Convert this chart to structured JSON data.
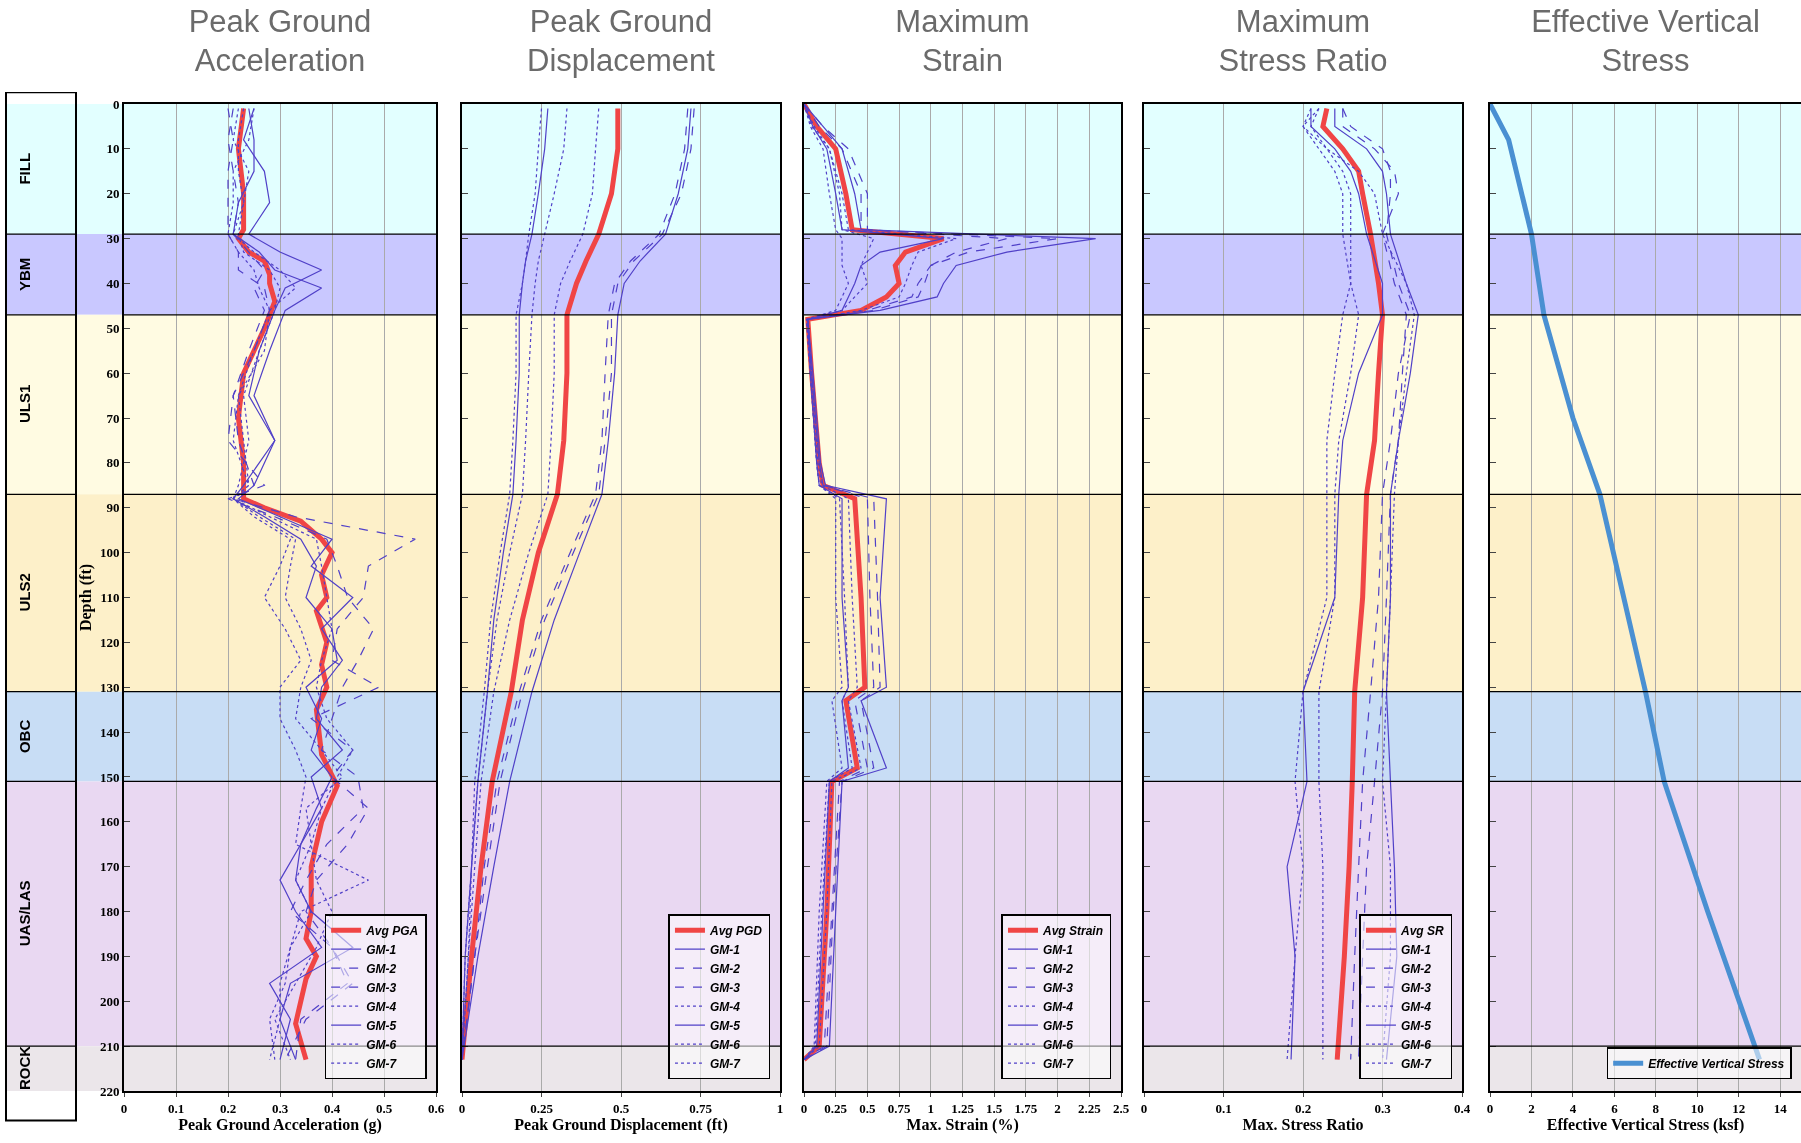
{
  "chart_data": [
    {
      "type": "line",
      "title": "Peak Ground\nAcceleration",
      "xlabel": "Peak Ground Acceleration (g)",
      "ylabel": "Depth (ft)",
      "xlim": [
        0,
        0.6
      ],
      "xticks": [
        0,
        0.1,
        0.2,
        0.3,
        0.4,
        0.5,
        0.6
      ],
      "ylim": [
        220,
        0
      ],
      "yticks": [
        0,
        10,
        20,
        30,
        40,
        50,
        60,
        70,
        80,
        90,
        100,
        110,
        120,
        130,
        140,
        150,
        160,
        170,
        180,
        190,
        200,
        210,
        220
      ],
      "grid": "x",
      "legend": "bottom right",
      "bands": [
        {
          "axis": "y",
          "from": 0,
          "to": 29,
          "label": "FILL",
          "color": "#e2ffff"
        },
        {
          "axis": "y",
          "from": 29,
          "to": 47,
          "label": "YBM",
          "color": "#c9c8ff"
        },
        {
          "axis": "y",
          "from": 47,
          "to": 87,
          "label": "ULS1",
          "color": "#fffbe2"
        },
        {
          "axis": "y",
          "from": 87,
          "to": 131,
          "label": "ULS2",
          "color": "#fdf0c9"
        },
        {
          "axis": "y",
          "from": 131,
          "to": 151,
          "label": "OBC",
          "color": "#c8ddf5"
        },
        {
          "axis": "y",
          "from": 151,
          "to": 210,
          "label": "UAS/LAS",
          "color": "#e9d8f2"
        },
        {
          "axis": "y",
          "from": 210,
          "to": 220,
          "label": "ROCK",
          "color": "#ebe6ea"
        }
      ],
      "series": [
        {
          "name": "Avg PGA",
          "color": "#f04545",
          "line_style": "solid",
          "x": [
            0.23,
            0.22,
            0.23,
            0.23,
            0.22,
            0.24,
            0.27,
            0.28,
            0.28,
            0.29,
            0.27,
            0.23,
            0.22,
            0.23,
            0.23,
            0.27,
            0.34,
            0.38,
            0.4,
            0.38,
            0.39,
            0.37,
            0.39,
            0.38,
            0.39,
            0.37,
            0.38,
            0.41,
            0.38,
            0.36,
            0.36,
            0.35,
            0.37,
            0.35,
            0.33,
            0.35
          ],
          "values": [
            1,
            10,
            20,
            28,
            30,
            33,
            35,
            38,
            40,
            44,
            50,
            60,
            70,
            80,
            88,
            90,
            93,
            97,
            100,
            105,
            110,
            113,
            120,
            125,
            130,
            135,
            145,
            152,
            160,
            170,
            180,
            186,
            190,
            195,
            205,
            213
          ]
        },
        {
          "name": "GM-1",
          "color": "#5040c8",
          "line_style": "solid",
          "x": [
            0.25,
            0.23,
            0.27,
            0.28,
            0.24,
            0.3,
            0.38,
            0.31,
            0.29,
            0.26,
            0.24,
            0.29,
            0.25,
            0.22,
            0.3,
            0.4,
            0.36,
            0.44,
            0.38,
            0.42,
            0.38,
            0.37,
            0.42,
            0.36,
            0.38,
            0.34,
            0.33,
            0.36,
            0.44,
            0.32,
            0.3,
            0.33
          ],
          "values": [
            1,
            8,
            15,
            22,
            29,
            33,
            37,
            41,
            46,
            55,
            65,
            75,
            85,
            88,
            92,
            97,
            103,
            110,
            117,
            124,
            130,
            137,
            144,
            150,
            157,
            165,
            173,
            180,
            188,
            196,
            204,
            213
          ]
        },
        {
          "name": "GM-2",
          "color": "#5040c8",
          "line_style": "dashed",
          "x": [
            0.21,
            0.2,
            0.21,
            0.22,
            0.21,
            0.24,
            0.27,
            0.25,
            0.27,
            0.24,
            0.21,
            0.22,
            0.25,
            0.21,
            0.33,
            0.56,
            0.47,
            0.46,
            0.41,
            0.4,
            0.49,
            0.36,
            0.44,
            0.4,
            0.47,
            0.43,
            0.37,
            0.35,
            0.4,
            0.43,
            0.34,
            0.33
          ],
          "values": [
            1,
            8,
            15,
            22,
            29,
            33,
            37,
            41,
            46,
            55,
            65,
            75,
            85,
            88,
            92,
            97,
            103,
            110,
            117,
            124,
            130,
            137,
            144,
            150,
            157,
            165,
            173,
            180,
            188,
            196,
            204,
            213
          ]
        },
        {
          "name": "GM-3",
          "color": "#5040c8",
          "line_style": "dashed",
          "x": [
            0.2,
            0.21,
            0.2,
            0.2,
            0.2,
            0.22,
            0.22,
            0.27,
            0.28,
            0.25,
            0.21,
            0.2,
            0.27,
            0.2,
            0.29,
            0.39,
            0.41,
            0.43,
            0.48,
            0.45,
            0.42,
            0.4,
            0.38,
            0.45,
            0.46,
            0.39,
            0.35,
            0.32,
            0.4,
            0.44,
            0.35,
            0.31
          ],
          "values": [
            1,
            8,
            15,
            22,
            29,
            33,
            37,
            41,
            46,
            55,
            65,
            75,
            85,
            88,
            92,
            97,
            103,
            110,
            117,
            124,
            130,
            137,
            144,
            150,
            157,
            165,
            173,
            180,
            188,
            196,
            204,
            213
          ]
        },
        {
          "name": "GM-4",
          "color": "#5040c8",
          "line_style": "dotted",
          "x": [
            0.22,
            0.21,
            0.24,
            0.23,
            0.21,
            0.25,
            0.3,
            0.33,
            0.28,
            0.27,
            0.22,
            0.23,
            0.24,
            0.21,
            0.28,
            0.37,
            0.38,
            0.39,
            0.4,
            0.38,
            0.37,
            0.39,
            0.44,
            0.41,
            0.38,
            0.36,
            0.37,
            0.4,
            0.37,
            0.33,
            0.29,
            0.32
          ],
          "values": [
            1,
            8,
            15,
            22,
            29,
            33,
            37,
            41,
            46,
            55,
            65,
            75,
            85,
            88,
            92,
            97,
            103,
            110,
            117,
            124,
            130,
            137,
            144,
            150,
            157,
            165,
            173,
            180,
            188,
            196,
            204,
            213
          ]
        },
        {
          "name": "GM-5",
          "color": "#5040c8",
          "line_style": "solid",
          "x": [
            0.24,
            0.25,
            0.25,
            0.22,
            0.21,
            0.26,
            0.29,
            0.38,
            0.31,
            0.28,
            0.25,
            0.29,
            0.23,
            0.21,
            0.27,
            0.34,
            0.37,
            0.35,
            0.4,
            0.41,
            0.35,
            0.38,
            0.36,
            0.4,
            0.37,
            0.34,
            0.3,
            0.33,
            0.38,
            0.28,
            0.32,
            0.3
          ],
          "values": [
            1,
            8,
            15,
            22,
            29,
            33,
            37,
            41,
            46,
            55,
            65,
            75,
            85,
            88,
            92,
            97,
            103,
            110,
            117,
            124,
            130,
            137,
            144,
            150,
            157,
            165,
            173,
            180,
            188,
            196,
            204,
            213
          ]
        },
        {
          "name": "GM-6",
          "color": "#5040c8",
          "line_style": "dotted",
          "x": [
            0.23,
            0.22,
            0.22,
            0.23,
            0.22,
            0.23,
            0.28,
            0.3,
            0.29,
            0.26,
            0.23,
            0.24,
            0.22,
            0.21,
            0.26,
            0.33,
            0.32,
            0.31,
            0.34,
            0.36,
            0.34,
            0.33,
            0.38,
            0.42,
            0.35,
            0.36,
            0.33,
            0.36,
            0.32,
            0.31,
            0.28,
            0.29
          ],
          "values": [
            1,
            8,
            15,
            22,
            29,
            33,
            37,
            41,
            46,
            55,
            65,
            75,
            85,
            88,
            92,
            97,
            103,
            110,
            117,
            124,
            130,
            137,
            144,
            150,
            157,
            165,
            173,
            180,
            188,
            196,
            204,
            213
          ]
        },
        {
          "name": "GM-7",
          "color": "#5040c8",
          "line_style": "dotted",
          "x": [
            0.25,
            0.24,
            0.21,
            0.21,
            0.2,
            0.22,
            0.25,
            0.26,
            0.28,
            0.25,
            0.22,
            0.21,
            0.24,
            0.21,
            0.25,
            0.32,
            0.3,
            0.27,
            0.31,
            0.34,
            0.3,
            0.3,
            0.33,
            0.35,
            0.34,
            0.33,
            0.47,
            0.34,
            0.32,
            0.3,
            0.3,
            0.28
          ],
          "values": [
            1,
            8,
            15,
            22,
            29,
            33,
            37,
            41,
            46,
            55,
            65,
            75,
            85,
            88,
            92,
            97,
            103,
            110,
            117,
            124,
            130,
            137,
            144,
            150,
            157,
            165,
            173,
            180,
            188,
            196,
            204,
            213
          ]
        }
      ]
    },
    {
      "type": "line",
      "title": "Peak Ground\nDisplacement",
      "xlabel": "Peak Ground Displacement (ft)",
      "xlim": [
        0,
        1
      ],
      "xticks": [
        0,
        0.25,
        0.5,
        0.75,
        1
      ],
      "ylim": [
        220,
        0
      ],
      "yticks": [
        0,
        10,
        20,
        30,
        40,
        50,
        60,
        70,
        80,
        90,
        100,
        110,
        120,
        130,
        140,
        150,
        160,
        170,
        180,
        190,
        200,
        210,
        220
      ],
      "grid": "x",
      "legend": "bottom right",
      "tick_labels": "x",
      "bands": [
        {
          "axis": "y",
          "from": 0,
          "to": 29,
          "color": "#e2ffff"
        },
        {
          "axis": "y",
          "from": 29,
          "to": 47,
          "color": "#c9c8ff"
        },
        {
          "axis": "y",
          "from": 47,
          "to": 87,
          "color": "#fffbe2"
        },
        {
          "axis": "y",
          "from": 87,
          "to": 131,
          "color": "#fdf0c9"
        },
        {
          "axis": "y",
          "from": 131,
          "to": 151,
          "color": "#c8ddf5"
        },
        {
          "axis": "y",
          "from": 151,
          "to": 210,
          "color": "#e9d8f2"
        },
        {
          "axis": "y",
          "from": 210,
          "to": 220,
          "color": "#ebe6ea"
        }
      ],
      "series": [
        {
          "name": "Avg PGD",
          "color": "#f04545",
          "line_style": "solid",
          "x": [
            0.49,
            0.49,
            0.47,
            0.43,
            0.39,
            0.36,
            0.33,
            0.33,
            0.32,
            0.3,
            0.24,
            0.19,
            0.155,
            0.095,
            0.06,
            0.03,
            0
          ],
          "values": [
            1,
            10,
            20,
            29,
            35,
            40,
            47,
            60,
            75,
            87,
            100,
            115,
            131,
            151,
            170,
            190,
            213
          ]
        },
        {
          "name": "GM-1",
          "color": "#5040c8",
          "line_style": "solid",
          "x": [
            0.72,
            0.71,
            0.68,
            0.64,
            0.56,
            0.51,
            0.49,
            0.48,
            0.46,
            0.44,
            0.37,
            0.29,
            0.22,
            0.15,
            0.1,
            0.05,
            0
          ],
          "values": [
            1,
            10,
            20,
            29,
            35,
            40,
            47,
            60,
            75,
            87,
            100,
            115,
            131,
            151,
            170,
            190,
            213
          ]
        },
        {
          "name": "GM-2",
          "color": "#5040c8",
          "line_style": "dashed",
          "x": [
            0.73,
            0.72,
            0.69,
            0.63,
            0.54,
            0.49,
            0.47,
            0.47,
            0.45,
            0.43,
            0.35,
            0.26,
            0.19,
            0.12,
            0.08,
            0.04,
            0
          ],
          "values": [
            1,
            10,
            20,
            29,
            35,
            40,
            47,
            60,
            75,
            87,
            100,
            115,
            131,
            151,
            170,
            190,
            213
          ]
        },
        {
          "name": "GM-3",
          "color": "#5040c8",
          "line_style": "dashed",
          "x": [
            0.71,
            0.7,
            0.67,
            0.62,
            0.53,
            0.48,
            0.46,
            0.45,
            0.44,
            0.42,
            0.34,
            0.25,
            0.18,
            0.11,
            0.07,
            0.04,
            0
          ],
          "values": [
            1,
            10,
            20,
            29,
            35,
            40,
            47,
            60,
            75,
            87,
            100,
            115,
            131,
            151,
            170,
            190,
            213
          ]
        },
        {
          "name": "GM-4",
          "color": "#5040c8",
          "line_style": "dotted",
          "x": [
            0.43,
            0.42,
            0.41,
            0.38,
            0.34,
            0.31,
            0.29,
            0.29,
            0.28,
            0.27,
            0.21,
            0.15,
            0.1,
            0.06,
            0.04,
            0.02,
            0
          ],
          "values": [
            1,
            10,
            20,
            29,
            35,
            40,
            47,
            60,
            75,
            87,
            100,
            115,
            131,
            151,
            170,
            190,
            213
          ]
        },
        {
          "name": "GM-5",
          "color": "#5040c8",
          "line_style": "solid",
          "x": [
            0.27,
            0.26,
            0.24,
            0.22,
            0.2,
            0.19,
            0.18,
            0.18,
            0.17,
            0.16,
            0.13,
            0.1,
            0.08,
            0.05,
            0.03,
            0.01,
            0
          ],
          "values": [
            1,
            10,
            20,
            29,
            35,
            40,
            47,
            60,
            75,
            87,
            100,
            115,
            131,
            151,
            170,
            190,
            213
          ]
        },
        {
          "name": "GM-6",
          "color": "#5040c8",
          "line_style": "dotted",
          "x": [
            0.25,
            0.24,
            0.23,
            0.21,
            0.2,
            0.19,
            0.17,
            0.17,
            0.16,
            0.15,
            0.12,
            0.09,
            0.07,
            0.04,
            0.03,
            0.01,
            0
          ],
          "values": [
            1,
            10,
            20,
            29,
            35,
            40,
            47,
            60,
            75,
            87,
            100,
            115,
            131,
            151,
            170,
            190,
            213
          ]
        },
        {
          "name": "GM-7",
          "color": "#5040c8",
          "line_style": "dotted",
          "x": [
            0.33,
            0.32,
            0.29,
            0.26,
            0.24,
            0.23,
            0.22,
            0.21,
            0.2,
            0.19,
            0.15,
            0.11,
            0.08,
            0.05,
            0.03,
            0.02,
            0
          ],
          "values": [
            1,
            10,
            20,
            29,
            35,
            40,
            47,
            60,
            75,
            87,
            100,
            115,
            131,
            151,
            170,
            190,
            213
          ]
        }
      ]
    },
    {
      "type": "line",
      "title": "Maximum\nStrain",
      "xlabel": "Max. Strain (%)",
      "xlim": [
        0,
        2.5
      ],
      "xticks": [
        0,
        0.25,
        0.5,
        0.75,
        1,
        1.25,
        1.5,
        1.75,
        2,
        2.25,
        2.5
      ],
      "ylim": [
        220,
        0
      ],
      "yticks": [
        0,
        10,
        20,
        30,
        40,
        50,
        60,
        70,
        80,
        90,
        100,
        110,
        120,
        130,
        140,
        150,
        160,
        170,
        180,
        190,
        200,
        210,
        220
      ],
      "grid": "x",
      "legend": "bottom right",
      "tick_labels": "x",
      "bands": [
        {
          "axis": "y",
          "from": 0,
          "to": 29,
          "color": "#e2ffff"
        },
        {
          "axis": "y",
          "from": 29,
          "to": 47,
          "color": "#c9c8ff"
        },
        {
          "axis": "y",
          "from": 47,
          "to": 87,
          "color": "#fffbe2"
        },
        {
          "axis": "y",
          "from": 87,
          "to": 131,
          "color": "#fdf0c9"
        },
        {
          "axis": "y",
          "from": 131,
          "to": 151,
          "color": "#c8ddf5"
        },
        {
          "axis": "y",
          "from": 151,
          "to": 210,
          "color": "#e9d8f2"
        },
        {
          "axis": "y",
          "from": 210,
          "to": 220,
          "color": "#ebe6ea"
        }
      ],
      "series": [
        {
          "name": "Avg Strain",
          "color": "#f04545",
          "line_style": "solid",
          "x": [
            0,
            0.1,
            0.25,
            0.33,
            0.38,
            1.1,
            0.8,
            0.72,
            0.75,
            0.65,
            0.45,
            0.03,
            0.06,
            0.12,
            0.15,
            0.4,
            0.45,
            0.48,
            0.33,
            0.42,
            0.22,
            0.18,
            0.12,
            0
          ],
          "values": [
            0,
            5,
            10,
            20,
            28,
            30,
            33,
            36,
            40,
            43,
            46,
            48,
            60,
            80,
            85,
            88,
            110,
            130,
            133,
            148,
            151,
            180,
            210,
            213
          ]
        },
        {
          "name": "GM-1",
          "color": "#5040c8",
          "line_style": "solid",
          "x": [
            0,
            0.15,
            0.3,
            0.4,
            0.45,
            2.3,
            1.6,
            1.2,
            1.1,
            1.05,
            0.6,
            0.03,
            0.07,
            0.13,
            0.17,
            0.65,
            0.6,
            0.65,
            0.45,
            0.65,
            0.3,
            0.25,
            0.2,
            0
          ],
          "values": [
            0,
            5,
            10,
            20,
            28,
            30,
            33,
            36,
            40,
            43,
            46,
            48,
            60,
            80,
            85,
            88,
            110,
            130,
            133,
            148,
            151,
            180,
            210,
            213
          ]
        },
        {
          "name": "GM-2",
          "color": "#5040c8",
          "line_style": "dashed",
          "x": [
            0,
            0.15,
            0.35,
            0.5,
            0.5,
            1.6,
            1.2,
            1,
            0.95,
            0.9,
            0.55,
            0.03,
            0.06,
            0.12,
            0.15,
            0.55,
            0.58,
            0.6,
            0.45,
            0.55,
            0.3,
            0.23,
            0.18,
            0
          ],
          "values": [
            0,
            5,
            10,
            20,
            28,
            30,
            33,
            36,
            40,
            43,
            46,
            48,
            60,
            80,
            85,
            88,
            110,
            130,
            133,
            148,
            151,
            180,
            210,
            213
          ]
        },
        {
          "name": "GM-3",
          "color": "#5040c8",
          "line_style": "dashed",
          "x": [
            0,
            0.12,
            0.3,
            0.45,
            0.45,
            2,
            1.3,
            1,
            0.9,
            0.85,
            0.5,
            0.03,
            0.06,
            0.12,
            0.15,
            0.5,
            0.52,
            0.55,
            0.4,
            0.5,
            0.28,
            0.22,
            0.16,
            0
          ],
          "values": [
            0,
            5,
            10,
            20,
            28,
            30,
            33,
            36,
            40,
            43,
            46,
            48,
            60,
            80,
            85,
            88,
            110,
            130,
            133,
            148,
            151,
            180,
            210,
            213
          ]
        },
        {
          "name": "GM-4",
          "color": "#5040c8",
          "line_style": "dotted",
          "x": [
            0,
            0.08,
            0.2,
            0.3,
            0.35,
            1.2,
            0.9,
            0.85,
            0.8,
            0.75,
            0.45,
            0.03,
            0.06,
            0.11,
            0.14,
            0.35,
            0.38,
            0.42,
            0.35,
            0.45,
            0.22,
            0.18,
            0.12,
            0
          ],
          "values": [
            0,
            5,
            10,
            20,
            28,
            30,
            33,
            36,
            40,
            43,
            46,
            48,
            60,
            80,
            85,
            88,
            110,
            130,
            133,
            148,
            151,
            180,
            210,
            213
          ]
        },
        {
          "name": "GM-5",
          "color": "#5040c8",
          "line_style": "solid",
          "x": [
            0,
            0.07,
            0.18,
            0.25,
            0.3,
            1.1,
            0.6,
            0.45,
            0.4,
            0.35,
            0.3,
            0.03,
            0.05,
            0.1,
            0.12,
            0.3,
            0.3,
            0.35,
            0.3,
            0.35,
            0.2,
            0.15,
            0.1,
            0
          ],
          "values": [
            0,
            5,
            10,
            20,
            28,
            30,
            33,
            36,
            40,
            43,
            46,
            48,
            60,
            80,
            85,
            88,
            110,
            130,
            133,
            148,
            151,
            180,
            210,
            213
          ]
        },
        {
          "name": "GM-6",
          "color": "#5040c8",
          "line_style": "dotted",
          "x": [
            0,
            0.05,
            0.15,
            0.2,
            0.25,
            0.3,
            0.3,
            0.3,
            0.35,
            0.3,
            0.25,
            0.02,
            0.05,
            0.1,
            0.12,
            0.25,
            0.25,
            0.3,
            0.22,
            0.3,
            0.18,
            0.12,
            0.08,
            0
          ],
          "values": [
            0,
            5,
            10,
            20,
            28,
            30,
            33,
            36,
            40,
            43,
            46,
            48,
            60,
            80,
            85,
            88,
            110,
            130,
            133,
            148,
            151,
            180,
            210,
            213
          ]
        },
        {
          "name": "GM-7",
          "color": "#5040c8",
          "line_style": "dotted",
          "x": [
            0,
            0.06,
            0.2,
            0.28,
            0.3,
            0.55,
            0.5,
            0.45,
            0.5,
            0.4,
            0.3,
            0.02,
            0.05,
            0.1,
            0.12,
            0.28,
            0.32,
            0.35,
            0.3,
            0.38,
            0.2,
            0.14,
            0.09,
            0
          ],
          "values": [
            0,
            5,
            10,
            20,
            28,
            30,
            33,
            36,
            40,
            43,
            46,
            48,
            60,
            80,
            85,
            88,
            110,
            130,
            133,
            148,
            151,
            180,
            210,
            213
          ]
        }
      ]
    },
    {
      "type": "line",
      "title": "Maximum\nStress Ratio",
      "xlabel": "Max. Stress Ratio",
      "xlim": [
        0,
        0.4
      ],
      "xticks": [
        0,
        0.1,
        0.2,
        0.3,
        0.4
      ],
      "ylim": [
        220,
        0
      ],
      "yticks": [
        0,
        10,
        20,
        30,
        40,
        50,
        60,
        70,
        80,
        90,
        100,
        110,
        120,
        130,
        140,
        150,
        160,
        170,
        180,
        190,
        200,
        210,
        220
      ],
      "grid": "x",
      "legend": "bottom right",
      "tick_labels": "x",
      "bands": [
        {
          "axis": "y",
          "from": 0,
          "to": 29,
          "color": "#e2ffff"
        },
        {
          "axis": "y",
          "from": 29,
          "to": 47,
          "color": "#c9c8ff"
        },
        {
          "axis": "y",
          "from": 47,
          "to": 87,
          "color": "#fffbe2"
        },
        {
          "axis": "y",
          "from": 87,
          "to": 131,
          "color": "#fdf0c9"
        },
        {
          "axis": "y",
          "from": 131,
          "to": 151,
          "color": "#c8ddf5"
        },
        {
          "axis": "y",
          "from": 151,
          "to": 210,
          "color": "#e9d8f2"
        },
        {
          "axis": "y",
          "from": 210,
          "to": 220,
          "color": "#ebe6ea"
        }
      ],
      "series": [
        {
          "name": "Avg SR",
          "color": "#f04545",
          "line_style": "solid",
          "x": [
            0.23,
            0.225,
            0.25,
            0.27,
            0.275,
            0.285,
            0.295,
            0.3,
            0.295,
            0.29,
            0.28,
            0.275,
            0.265,
            0.262,
            0.258,
            0.252,
            0.243
          ],
          "values": [
            1,
            5,
            10,
            15,
            20,
            29,
            40,
            47,
            60,
            75,
            87,
            110,
            131,
            151,
            170,
            190,
            213
          ]
        },
        {
          "name": "GM-1",
          "color": "#5040c8",
          "line_style": "solid",
          "x": [
            0.24,
            0.24,
            0.28,
            0.3,
            0.305,
            0.31,
            0.33,
            0.345,
            0.335,
            0.32,
            0.31,
            0.31,
            0.305,
            0.31,
            0.315,
            0.318,
            0.305
          ],
          "values": [
            1,
            5,
            10,
            15,
            20,
            29,
            40,
            47,
            60,
            75,
            87,
            110,
            131,
            151,
            170,
            190,
            213
          ]
        },
        {
          "name": "GM-2",
          "color": "#5040c8",
          "line_style": "dashed",
          "x": [
            0.25,
            0.26,
            0.3,
            0.31,
            0.31,
            0.305,
            0.32,
            0.335,
            0.32,
            0.31,
            0.3,
            0.295,
            0.285,
            0.275,
            0.27,
            0.265,
            0.26
          ],
          "values": [
            1,
            5,
            10,
            15,
            20,
            29,
            40,
            47,
            60,
            75,
            87,
            110,
            131,
            151,
            170,
            190,
            213
          ]
        },
        {
          "name": "GM-3",
          "color": "#5040c8",
          "line_style": "dashed",
          "x": [
            0.25,
            0.25,
            0.29,
            0.315,
            0.32,
            0.3,
            0.315,
            0.33,
            0.325,
            0.32,
            0.31,
            0.305,
            0.3,
            0.29,
            0.28,
            0.275,
            0.27
          ],
          "values": [
            1,
            5,
            10,
            15,
            20,
            29,
            40,
            47,
            60,
            75,
            87,
            110,
            131,
            151,
            170,
            190,
            213
          ]
        },
        {
          "name": "GM-4",
          "color": "#5040c8",
          "line_style": "dotted",
          "x": [
            0.22,
            0.21,
            0.23,
            0.27,
            0.29,
            0.3,
            0.33,
            0.34,
            0.33,
            0.32,
            0.315,
            0.31,
            0.305,
            0.3,
            0.31,
            0.31,
            0.3
          ],
          "values": [
            1,
            5,
            10,
            15,
            20,
            29,
            40,
            47,
            60,
            75,
            87,
            110,
            131,
            151,
            170,
            190,
            213
          ]
        },
        {
          "name": "GM-5",
          "color": "#5040c8",
          "line_style": "solid",
          "x": [
            0.21,
            0.21,
            0.24,
            0.26,
            0.27,
            0.28,
            0.3,
            0.3,
            0.27,
            0.25,
            0.245,
            0.24,
            0.2,
            0.205,
            0.18,
            0.19,
            0.185
          ],
          "values": [
            1,
            5,
            10,
            15,
            20,
            29,
            40,
            47,
            60,
            75,
            87,
            110,
            131,
            151,
            170,
            190,
            213
          ]
        },
        {
          "name": "GM-6",
          "color": "#5040c8",
          "line_style": "dotted",
          "x": [
            0.22,
            0.2,
            0.22,
            0.24,
            0.25,
            0.25,
            0.26,
            0.25,
            0.24,
            0.23,
            0.23,
            0.23,
            0.2,
            0.19,
            0.2,
            0.19,
            0.18
          ],
          "values": [
            1,
            5,
            10,
            15,
            20,
            29,
            40,
            47,
            60,
            75,
            87,
            110,
            131,
            151,
            170,
            190,
            213
          ]
        },
        {
          "name": "GM-7",
          "color": "#5040c8",
          "line_style": "dotted",
          "x": [
            0.21,
            0.2,
            0.23,
            0.25,
            0.26,
            0.26,
            0.26,
            0.27,
            0.26,
            0.245,
            0.24,
            0.24,
            0.22,
            0.22,
            0.225,
            0.225,
            0.225
          ],
          "values": [
            1,
            5,
            10,
            15,
            20,
            29,
            40,
            47,
            60,
            75,
            87,
            110,
            131,
            151,
            170,
            190,
            213
          ]
        }
      ]
    },
    {
      "type": "line",
      "title": "Effective Vertical\nStress",
      "xlabel": "Effective Vertical Stress (ksf)",
      "xlim": [
        0,
        15
      ],
      "xticks": [
        0,
        2,
        4,
        6,
        8,
        10,
        12,
        14
      ],
      "ylim": [
        220,
        0
      ],
      "yticks": [
        0,
        10,
        20,
        30,
        40,
        50,
        60,
        70,
        80,
        90,
        100,
        110,
        120,
        130,
        140,
        150,
        160,
        170,
        180,
        190,
        200,
        210,
        220
      ],
      "grid": "x",
      "legend": "bottom right",
      "tick_labels": "x",
      "bands": [
        {
          "axis": "y",
          "from": 0,
          "to": 29,
          "color": "#e2ffff"
        },
        {
          "axis": "y",
          "from": 29,
          "to": 47,
          "color": "#c9c8ff"
        },
        {
          "axis": "y",
          "from": 47,
          "to": 87,
          "color": "#fffbe2"
        },
        {
          "axis": "y",
          "from": 87,
          "to": 131,
          "color": "#fdf0c9"
        },
        {
          "axis": "y",
          "from": 131,
          "to": 151,
          "color": "#c8ddf5"
        },
        {
          "axis": "y",
          "from": 151,
          "to": 210,
          "color": "#e9d8f2"
        },
        {
          "axis": "y",
          "from": 210,
          "to": 220,
          "color": "#ebe6ea"
        }
      ],
      "series": [
        {
          "name": "Effective Vertical Stress",
          "color": "#4a90d2",
          "line_style": "solid",
          "x": [
            0,
            0.9,
            2,
            2.6,
            4,
            5.3,
            7.5,
            8.4,
            10.5,
            13
          ],
          "values": [
            0,
            8,
            29,
            47,
            70,
            87,
            131,
            151,
            180,
            213
          ]
        }
      ]
    }
  ]
}
